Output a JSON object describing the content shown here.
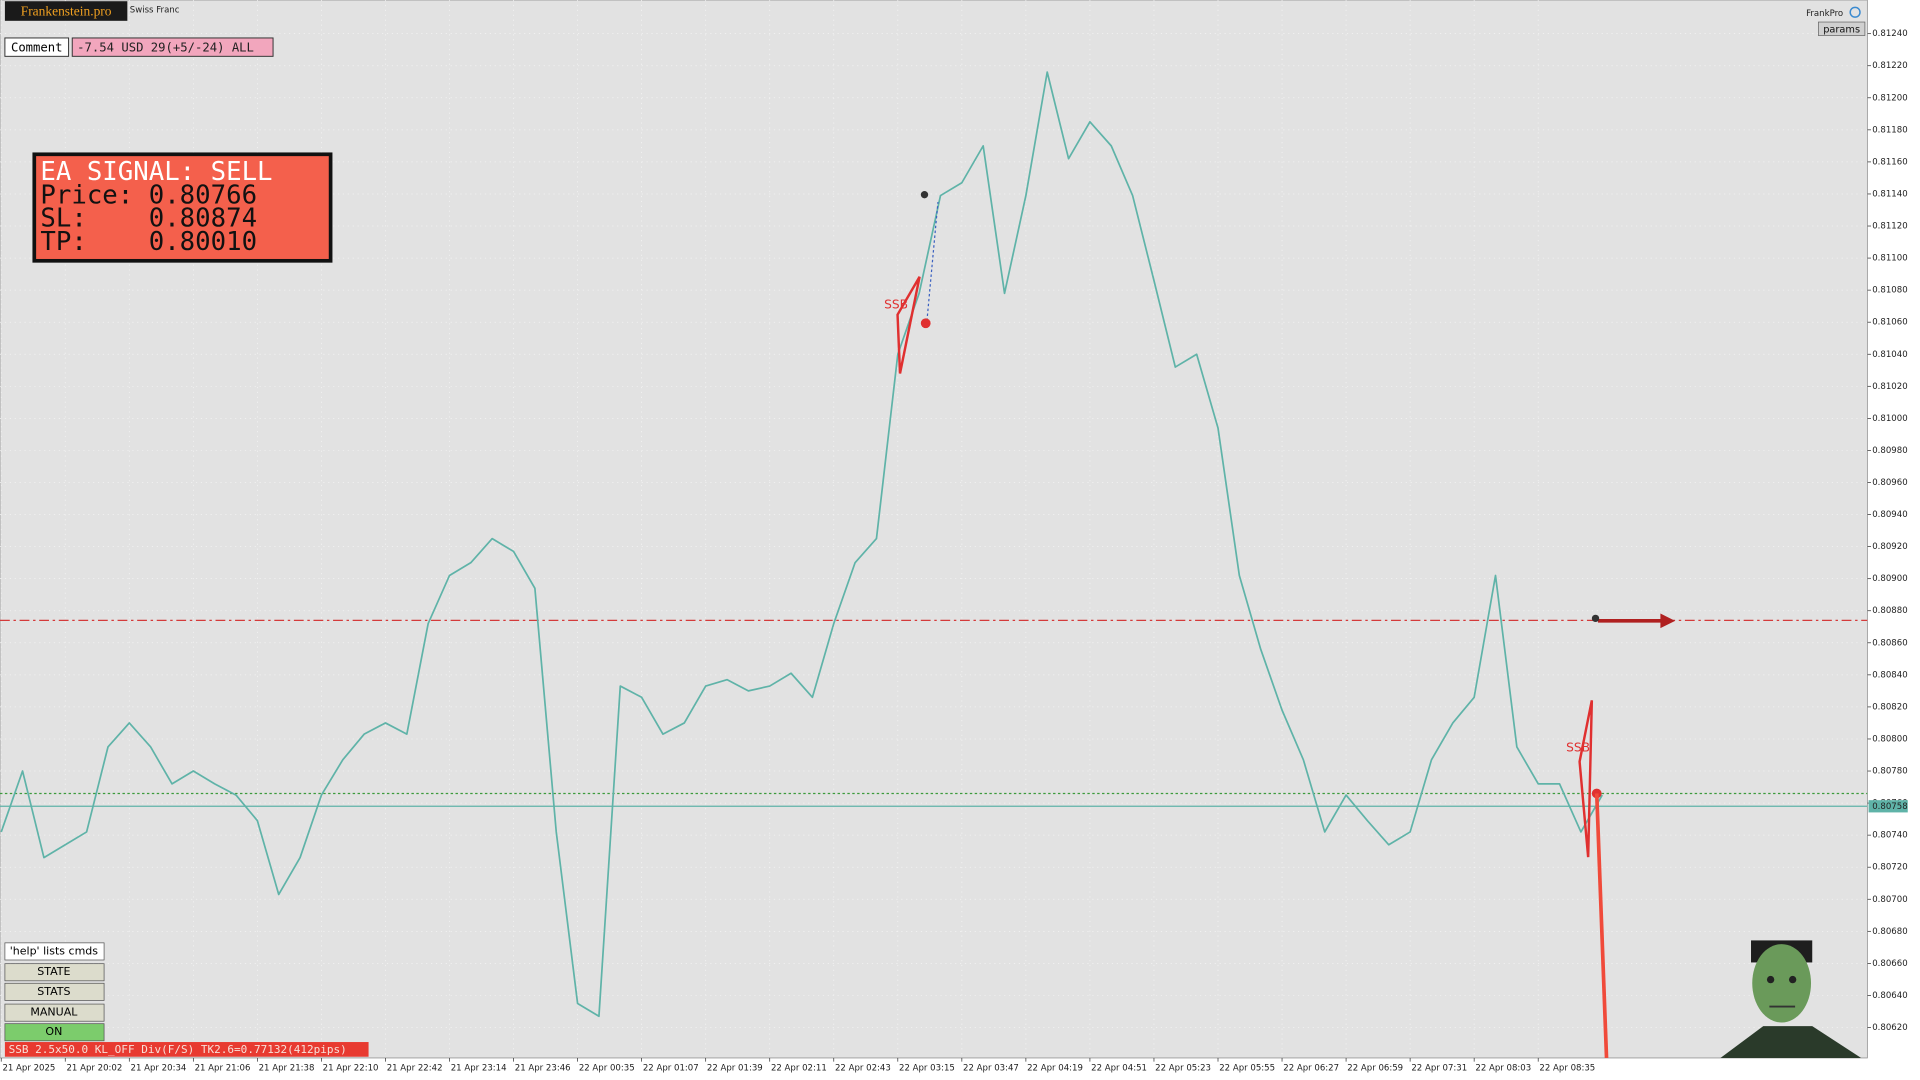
{
  "header": {
    "logo": "Frankenstein.pro",
    "symbol": "Swiss Franc",
    "expert": "FrankPro",
    "params_button": "params"
  },
  "comment": {
    "label": "Comment",
    "text": "-7.54 USD 29(+5/-24) ALL"
  },
  "signal": {
    "lines": [
      "EA SIGNAL: SELL",
      "Price: 0.80766",
      "SL:    0.80874",
      "TP:    0.80010"
    ]
  },
  "buttons": [
    "'help' lists cmds",
    "STATE",
    "STATS",
    "MANUAL",
    "ON"
  ],
  "status": "SSB 2.5x50.0 KL_OFF Div(F/S) TK2.6=0.77132(412pips)",
  "annotations": [
    "SSB",
    "SSB"
  ],
  "chart_data": {
    "type": "line",
    "color": "#5fb3a8",
    "grid": true,
    "categories": [
      "21 Apr 2025",
      null,
      null,
      "21 Apr 20:02",
      null,
      null,
      "21 Apr 20:34",
      null,
      null,
      "21 Apr 21:06",
      null,
      null,
      "21 Apr 21:38",
      null,
      null,
      "21 Apr 22:10",
      null,
      null,
      "21 Apr 22:42",
      null,
      null,
      "21 Apr 23:14",
      null,
      null,
      "21 Apr 23:46",
      null,
      null,
      "22 Apr 00:35",
      null,
      null,
      "22 Apr 01:07",
      null,
      null,
      "22 Apr 01:39",
      null,
      null,
      "22 Apr 02:11",
      null,
      null,
      "22 Apr 02:43",
      null,
      null,
      "22 Apr 03:15",
      null,
      null,
      "22 Apr 03:47",
      null,
      null,
      "22 Apr 04:19",
      null,
      null,
      "22 Apr 04:51",
      null,
      null,
      "22 Apr 05:23",
      null,
      null,
      "22 Apr 05:55",
      null,
      null,
      "22 Apr 06:27",
      null,
      null,
      "22 Apr 06:59",
      null,
      null,
      "22 Apr 07:31",
      null,
      null,
      "22 Apr 08:03",
      null,
      null,
      "22 Apr 08:35",
      null,
      null,
      null
    ],
    "values": [
      0.80742,
      0.8078,
      0.80726,
      0.80734,
      0.80742,
      0.80795,
      0.8081,
      0.80795,
      0.80772,
      0.8078,
      0.80772,
      0.80765,
      0.80749,
      0.80703,
      0.80726,
      0.80765,
      0.80787,
      0.80803,
      0.8081,
      0.80803,
      0.80872,
      0.80902,
      0.8091,
      0.80925,
      0.80917,
      0.80894,
      0.80742,
      0.80635,
      0.80627,
      0.80833,
      0.80826,
      0.80803,
      0.8081,
      0.80833,
      0.80837,
      0.8083,
      0.80833,
      0.80841,
      0.80826,
      0.80872,
      0.8091,
      0.80925,
      0.8104,
      0.81078,
      0.81139,
      0.81147,
      0.8117,
      0.81078,
      0.81139,
      0.81216,
      0.81162,
      0.81185,
      0.8117,
      0.81139,
      0.81086,
      0.81032,
      0.8104,
      0.80994,
      0.80902,
      0.80856,
      0.80818,
      0.80787,
      0.80742,
      0.80765,
      0.80749,
      0.80734,
      0.80742,
      0.80787,
      0.8081,
      0.80826,
      0.80902,
      0.80795,
      0.80772,
      0.80772,
      0.80742,
      0.80765
    ],
    "ylim": [
      0.80601,
      0.81261
    ],
    "yticks": [
      {
        "value": 0.8062,
        "label": "0.80620"
      },
      {
        "value": 0.8064,
        "label": "0.80640"
      },
      {
        "value": 0.8066,
        "label": "0.80660"
      },
      {
        "value": 0.8068,
        "label": "0.80680"
      },
      {
        "value": 0.807,
        "label": "0.80700"
      },
      {
        "value": 0.8072,
        "label": "0.80720"
      },
      {
        "value": 0.8074,
        "label": "0.80740"
      },
      {
        "value": 0.8076,
        "label": "0.80760"
      },
      {
        "value": 0.8078,
        "label": "0.80780"
      },
      {
        "value": 0.808,
        "label": "0.80800"
      },
      {
        "value": 0.8082,
        "label": "0.80820"
      },
      {
        "value": 0.8084,
        "label": "0.80840"
      },
      {
        "value": 0.8086,
        "label": "0.80860"
      },
      {
        "value": 0.8088,
        "label": "0.80880"
      },
      {
        "value": 0.809,
        "label": "0.80900"
      },
      {
        "value": 0.8092,
        "label": "0.80920"
      },
      {
        "value": 0.8094,
        "label": "0.80940"
      },
      {
        "value": 0.8096,
        "label": "0.80960"
      },
      {
        "value": 0.8098,
        "label": "0.80980"
      },
      {
        "value": 0.81,
        "label": "0.81000"
      },
      {
        "value": 0.8102,
        "label": "0.81020"
      },
      {
        "value": 0.8104,
        "label": "0.81040"
      },
      {
        "value": 0.8106,
        "label": "0.81060"
      },
      {
        "value": 0.8108,
        "label": "0.81080"
      },
      {
        "value": 0.811,
        "label": "0.81100"
      },
      {
        "value": 0.8112,
        "label": "0.81120"
      },
      {
        "value": 0.8114,
        "label": "0.81140"
      },
      {
        "value": 0.8116,
        "label": "0.81160"
      },
      {
        "value": 0.8118,
        "label": "0.81180"
      },
      {
        "value": 0.812,
        "label": "0.81200"
      },
      {
        "value": 0.8122,
        "label": "0.81220"
      },
      {
        "value": 0.8124,
        "label": "0.81240"
      }
    ],
    "levels": [
      {
        "value": 0.80874,
        "color": "#d43a3a",
        "style": "dashdot"
      },
      {
        "value": 0.80766,
        "color": "#3c9a3c",
        "style": "dotted"
      },
      {
        "value": 0.80758,
        "color": "#5fb3a8",
        "style": "solid",
        "labeled": true
      }
    ]
  }
}
